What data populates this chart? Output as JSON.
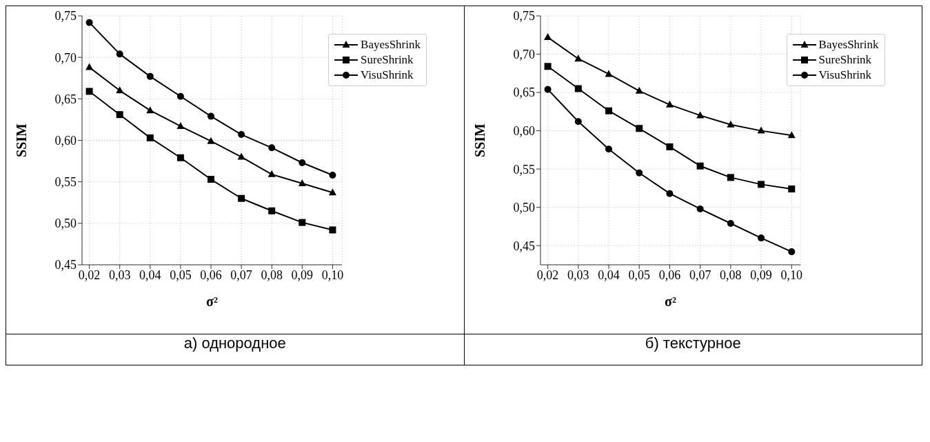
{
  "chart_data": [
    {
      "type": "line",
      "xlabel": "σ²",
      "ylabel": "SSIM",
      "annotations": [
        "а) однородное"
      ],
      "x": [
        0.02,
        0.03,
        0.04,
        0.05,
        0.06,
        0.07,
        0.08,
        0.09,
        0.1
      ],
      "series": [
        {
          "name": "BayesShrink",
          "color": "#000000",
          "marker": "triangle",
          "values": [
            0.688,
            0.66,
            0.636,
            0.617,
            0.599,
            0.58,
            0.559,
            0.548,
            0.537
          ]
        },
        {
          "name": "SureShrink",
          "color": "#000000",
          "marker": "square",
          "values": [
            0.659,
            0.631,
            0.603,
            0.579,
            0.553,
            0.53,
            0.515,
            0.501,
            0.492
          ]
        },
        {
          "name": "VisuShrink",
          "color": "#000000",
          "marker": "circle",
          "values": [
            0.742,
            0.704,
            0.677,
            0.653,
            0.629,
            0.607,
            0.591,
            0.573,
            0.558
          ]
        }
      ],
      "xlim": [
        0.0176,
        0.1031
      ],
      "ylim": [
        0.45,
        0.75
      ],
      "xticks": [
        {
          "value": 0.02,
          "label": "0,02"
        },
        {
          "value": 0.03,
          "label": "0,03"
        },
        {
          "value": 0.04,
          "label": "0,04"
        },
        {
          "value": 0.05,
          "label": "0,05"
        },
        {
          "value": 0.06,
          "label": "0,06"
        },
        {
          "value": 0.07,
          "label": "0,07"
        },
        {
          "value": 0.08,
          "label": "0,08"
        },
        {
          "value": 0.09,
          "label": "0,09"
        },
        {
          "value": 0.1,
          "label": "0,10"
        }
      ],
      "yticks": [
        {
          "value": 0.45,
          "label": "0,45"
        },
        {
          "value": 0.5,
          "label": "0,50"
        },
        {
          "value": 0.55,
          "label": "0,55"
        },
        {
          "value": 0.6,
          "label": "0,60"
        },
        {
          "value": 0.65,
          "label": "0,65"
        },
        {
          "value": 0.7,
          "label": "0,70"
        },
        {
          "value": 0.75,
          "label": "0,75"
        }
      ],
      "grid": true,
      "legend": "top right",
      "line_style": "solid"
    },
    {
      "type": "line",
      "xlabel": "σ²",
      "ylabel": "SSIM",
      "annotations": [
        "б) текстурное"
      ],
      "x": [
        0.02,
        0.03,
        0.04,
        0.05,
        0.06,
        0.07,
        0.08,
        0.09,
        0.1
      ],
      "series": [
        {
          "name": "BayesShrink",
          "color": "#000000",
          "marker": "triangle",
          "values": [
            0.722,
            0.694,
            0.674,
            0.652,
            0.634,
            0.62,
            0.608,
            0.6,
            0.594
          ]
        },
        {
          "name": "SureShrink",
          "color": "#000000",
          "marker": "square",
          "values": [
            0.684,
            0.655,
            0.626,
            0.603,
            0.579,
            0.554,
            0.539,
            0.53,
            0.524
          ]
        },
        {
          "name": "VisuShrink",
          "color": "#000000",
          "marker": "circle",
          "values": [
            0.654,
            0.612,
            0.576,
            0.545,
            0.518,
            0.498,
            0.479,
            0.46,
            0.442
          ]
        }
      ],
      "xlim": [
        0.0176,
        0.1029
      ],
      "ylim": [
        0.425,
        0.75
      ],
      "xticks": [
        {
          "value": 0.02,
          "label": "0,02"
        },
        {
          "value": 0.03,
          "label": "0,03"
        },
        {
          "value": 0.04,
          "label": "0,04"
        },
        {
          "value": 0.05,
          "label": "0,05"
        },
        {
          "value": 0.06,
          "label": "0,06"
        },
        {
          "value": 0.07,
          "label": "0,07"
        },
        {
          "value": 0.08,
          "label": "0,08"
        },
        {
          "value": 0.09,
          "label": "0,09"
        },
        {
          "value": 0.1,
          "label": "0,10"
        }
      ],
      "yticks": [
        {
          "value": 0.45,
          "label": "0,45"
        },
        {
          "value": 0.5,
          "label": "0,50"
        },
        {
          "value": 0.55,
          "label": "0,55"
        },
        {
          "value": 0.6,
          "label": "0,60"
        },
        {
          "value": 0.65,
          "label": "0,65"
        },
        {
          "value": 0.7,
          "label": "0,70"
        },
        {
          "value": 0.75,
          "label": "0,75"
        }
      ],
      "grid": true,
      "legend": "top right",
      "line_style": "solid"
    }
  ]
}
